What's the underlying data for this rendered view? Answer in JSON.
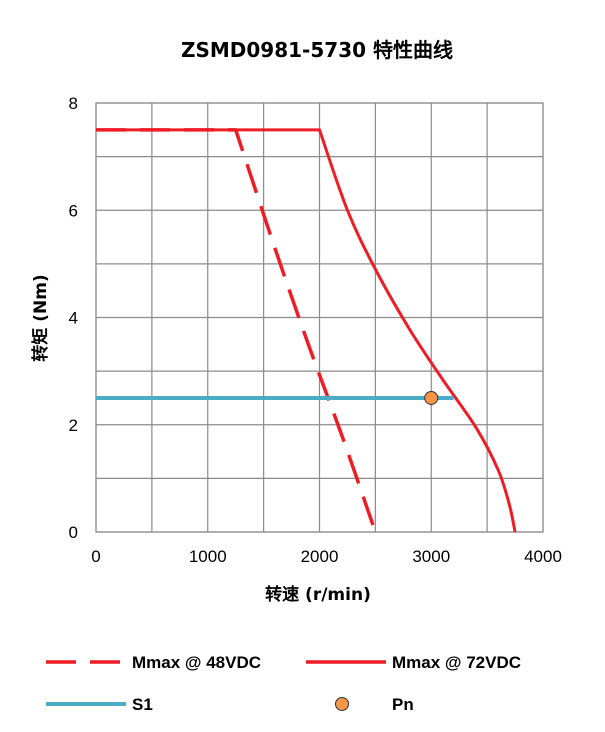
{
  "chart_data": {
    "type": "line",
    "title": "ZSMD0981-5730 特性曲线",
    "xlabel": "转速 (r/min)",
    "ylabel": "转矩 (Nm)",
    "xlim": [
      0,
      4000
    ],
    "ylim": [
      0,
      8
    ],
    "xticks": [
      0,
      1000,
      2000,
      3000,
      4000
    ],
    "yticks": [
      0,
      2,
      4,
      6,
      8
    ],
    "grid": true,
    "legend_position": "bottom",
    "series": [
      {
        "name": "Mmax @ 48VDC",
        "style": "dashed",
        "color": "#ee1c25",
        "points": [
          [
            0,
            7.5
          ],
          [
            1250,
            7.5
          ],
          [
            1600,
            5.3
          ],
          [
            1900,
            3.5
          ],
          [
            2200,
            1.8
          ],
          [
            2500,
            0
          ]
        ]
      },
      {
        "name": "Mmax @ 72VDC",
        "style": "solid",
        "color": "#ee1c25",
        "points": [
          [
            0,
            7.5
          ],
          [
            2000,
            7.5
          ],
          [
            2250,
            6.0
          ],
          [
            2500,
            4.9
          ],
          [
            2800,
            3.8
          ],
          [
            3100,
            2.85
          ],
          [
            3400,
            1.95
          ],
          [
            3600,
            1.15
          ],
          [
            3700,
            0.5
          ],
          [
            3750,
            0
          ]
        ]
      },
      {
        "name": "S1",
        "style": "solid",
        "color": "#4bacc6",
        "points": [
          [
            0,
            2.5
          ],
          [
            3200,
            2.5
          ]
        ]
      },
      {
        "name": "Pn",
        "style": "marker",
        "color": "#f79646",
        "points": [
          [
            3000,
            2.5
          ]
        ]
      }
    ]
  }
}
